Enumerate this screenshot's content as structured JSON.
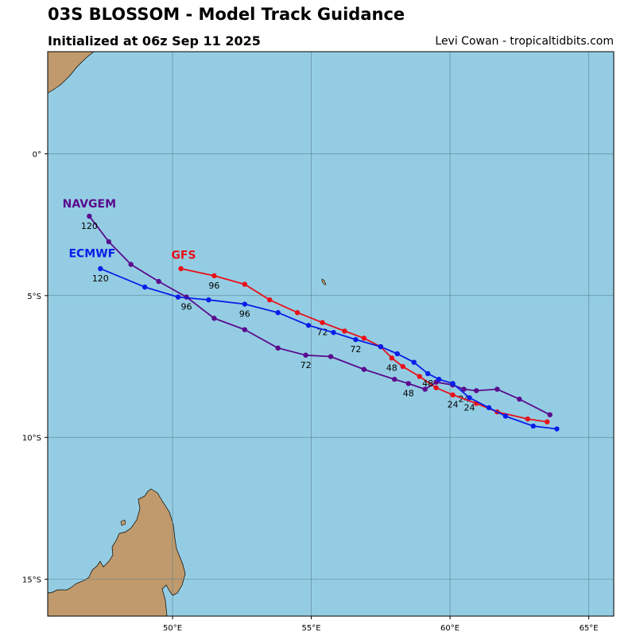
{
  "header": {
    "title": "03S BLOSSOM - Model Track Guidance",
    "subtitle": "Initialized at 06z Sep 11 2025",
    "credit": "Levi Cowan - tropicaltidbits.com"
  },
  "colors": {
    "ocean": "#94cde3",
    "land": "#c09a6c",
    "grid": "#5a7f8f",
    "NAVGEM": "#5a0b8e",
    "GFS": "#e8101a",
    "ECMWF": "#0b1ee8"
  },
  "chart_data": {
    "type": "map",
    "extent": {
      "lon": [
        45.5,
        65.9
      ],
      "lat": [
        -16.3,
        3.6
      ]
    },
    "lon_ticks": [
      {
        "value": 50,
        "label": "50°E"
      },
      {
        "value": 55,
        "label": "55°E"
      },
      {
        "value": 60,
        "label": "60°E"
      },
      {
        "value": 65,
        "label": "65°E"
      }
    ],
    "lat_ticks": [
      {
        "value": 0,
        "label": "0°"
      },
      {
        "value": -5,
        "label": "5°S"
      },
      {
        "value": -10,
        "label": "10°S"
      },
      {
        "value": -15,
        "label": "15°S"
      }
    ],
    "series": [
      {
        "name": "NAVGEM",
        "label_pos": [
          47.0,
          -1.9
        ],
        "points": [
          [
            63.6,
            -9.2
          ],
          [
            62.5,
            -8.65
          ],
          [
            61.7,
            -8.3
          ],
          [
            60.95,
            -8.35
          ],
          [
            60.5,
            -8.3
          ],
          [
            60.1,
            -8.15
          ],
          [
            59.5,
            -8.05
          ],
          [
            59.1,
            -8.3
          ],
          [
            58.5,
            -8.1
          ],
          [
            58.0,
            -7.95
          ],
          [
            56.9,
            -7.6
          ],
          [
            55.7,
            -7.15
          ],
          [
            54.8,
            -7.1
          ],
          [
            53.8,
            -6.85
          ],
          [
            52.6,
            -6.2
          ],
          [
            51.5,
            -5.8
          ],
          [
            50.5,
            -5.05
          ],
          [
            49.5,
            -4.5
          ],
          [
            48.5,
            -3.9
          ],
          [
            47.7,
            -3.1
          ],
          [
            47.0,
            -2.2
          ]
        ],
        "labels": [
          {
            "text": "24",
            "at": 60.5,
            "y": -8.3
          },
          {
            "text": "48",
            "at": 58.5,
            "y": -8.1
          },
          {
            "text": "72",
            "at": 54.8,
            "y": -7.1
          },
          {
            "text": "96",
            "at": 50.5,
            "y": -5.05
          },
          {
            "text": "120",
            "at": 47.0,
            "y": -2.2
          }
        ]
      },
      {
        "name": "GFS",
        "label_pos": [
          50.4,
          -3.7
        ],
        "points": [
          [
            63.5,
            -9.45
          ],
          [
            62.8,
            -9.35
          ],
          [
            61.7,
            -9.1
          ],
          [
            60.95,
            -8.8
          ],
          [
            60.1,
            -8.5
          ],
          [
            59.5,
            -8.25
          ],
          [
            58.9,
            -7.85
          ],
          [
            58.3,
            -7.5
          ],
          [
            57.9,
            -7.2
          ],
          [
            57.5,
            -6.8
          ],
          [
            56.9,
            -6.5
          ],
          [
            56.2,
            -6.25
          ],
          [
            55.4,
            -5.95
          ],
          [
            54.5,
            -5.6
          ],
          [
            53.5,
            -5.15
          ],
          [
            52.6,
            -4.6
          ],
          [
            51.5,
            -4.3
          ],
          [
            50.3,
            -4.05
          ]
        ],
        "labels": [
          {
            "text": "24",
            "at": 60.1,
            "y": -8.5
          },
          {
            "text": "48",
            "at": 57.9,
            "y": -7.2
          },
          {
            "text": "72",
            "at": 55.4,
            "y": -5.95
          },
          {
            "text": "96",
            "at": 51.5,
            "y": -4.3
          }
        ]
      },
      {
        "name": "ECMWF",
        "label_pos": [
          47.1,
          -3.65
        ],
        "points": [
          [
            63.85,
            -9.7
          ],
          [
            63.0,
            -9.6
          ],
          [
            62.0,
            -9.25
          ],
          [
            61.4,
            -8.95
          ],
          [
            60.7,
            -8.6
          ],
          [
            60.1,
            -8.1
          ],
          [
            59.6,
            -7.95
          ],
          [
            59.2,
            -7.75
          ],
          [
            58.7,
            -7.35
          ],
          [
            58.1,
            -7.05
          ],
          [
            57.5,
            -6.8
          ],
          [
            56.6,
            -6.55
          ],
          [
            55.8,
            -6.3
          ],
          [
            54.9,
            -6.05
          ],
          [
            53.8,
            -5.6
          ],
          [
            52.6,
            -5.3
          ],
          [
            51.3,
            -5.15
          ],
          [
            50.2,
            -5.05
          ],
          [
            49.0,
            -4.7
          ],
          [
            47.4,
            -4.05
          ]
        ],
        "labels": [
          {
            "text": "24",
            "at": 60.7,
            "y": -8.6
          },
          {
            "text": "48",
            "at": 59.2,
            "y": -7.75
          },
          {
            "text": "72",
            "at": 56.6,
            "y": -6.55
          },
          {
            "text": "96",
            "at": 52.6,
            "y": -5.3
          },
          {
            "text": "120",
            "at": 47.4,
            "y": -4.05
          }
        ]
      }
    ]
  }
}
